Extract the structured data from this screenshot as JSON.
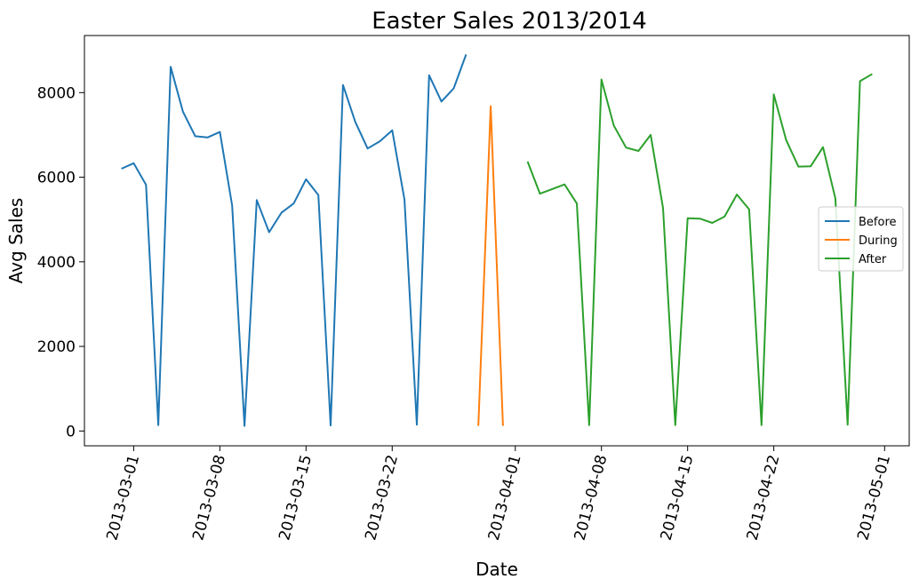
{
  "chart_data": {
    "type": "line",
    "title": "Easter Sales 2013/2014",
    "xlabel": "Date",
    "ylabel": "Avg Sales",
    "xlim": [
      "2013-02-25",
      "2013-05-03"
    ],
    "ylim": [
      -350,
      9350
    ],
    "grid": false,
    "legend_position": "center-right",
    "x_ticks": [
      "2013-03-01",
      "2013-03-08",
      "2013-03-15",
      "2013-03-22",
      "2013-04-01",
      "2013-04-08",
      "2013-04-15",
      "2013-04-22",
      "2013-05-01"
    ],
    "y_ticks": [
      0,
      2000,
      4000,
      6000,
      8000
    ],
    "series": [
      {
        "name": "Before",
        "color": "#1f77b4",
        "x": [
          "2013-02-28",
          "2013-03-01",
          "2013-03-02",
          "2013-03-03",
          "2013-03-04",
          "2013-03-05",
          "2013-03-06",
          "2013-03-07",
          "2013-03-08",
          "2013-03-09",
          "2013-03-10",
          "2013-03-11",
          "2013-03-12",
          "2013-03-13",
          "2013-03-14",
          "2013-03-15",
          "2013-03-16",
          "2013-03-17",
          "2013-03-18",
          "2013-03-19",
          "2013-03-20",
          "2013-03-21",
          "2013-03-22",
          "2013-03-23",
          "2013-03-24",
          "2013-03-25",
          "2013-03-26",
          "2013-03-27",
          "2013-03-28"
        ],
        "values": [
          6200,
          6330,
          5820,
          140,
          8610,
          7550,
          6970,
          6940,
          7070,
          5330,
          120,
          5460,
          4700,
          5160,
          5380,
          5950,
          5580,
          130,
          8180,
          7310,
          6680,
          6850,
          7110,
          5470,
          150,
          8410,
          7790,
          8100,
          8900
        ]
      },
      {
        "name": "During",
        "color": "#ff7f0e",
        "x": [
          "2013-03-29",
          "2013-03-30",
          "2013-03-31"
        ],
        "values": [
          120,
          7680,
          120
        ]
      },
      {
        "name": "After",
        "color": "#2ca02c",
        "x": [
          "2013-04-02",
          "2013-04-03",
          "2013-04-04",
          "2013-04-05",
          "2013-04-06",
          "2013-04-07",
          "2013-04-08",
          "2013-04-09",
          "2013-04-10",
          "2013-04-11",
          "2013-04-12",
          "2013-04-13",
          "2013-04-14",
          "2013-04-15",
          "2013-04-16",
          "2013-04-17",
          "2013-04-18",
          "2013-04-19",
          "2013-04-20",
          "2013-04-21",
          "2013-04-22",
          "2013-04-23",
          "2013-04-24",
          "2013-04-25",
          "2013-04-26",
          "2013-04-27",
          "2013-04-28",
          "2013-04-29",
          "2013-04-30"
        ],
        "values": [
          6370,
          5610,
          5720,
          5830,
          5380,
          140,
          8310,
          7220,
          6700,
          6620,
          7000,
          5270,
          140,
          5030,
          5020,
          4920,
          5070,
          5590,
          5240,
          140,
          7960,
          6880,
          6250,
          6260,
          6710,
          5500,
          150,
          8270,
          8440
        ]
      }
    ]
  }
}
